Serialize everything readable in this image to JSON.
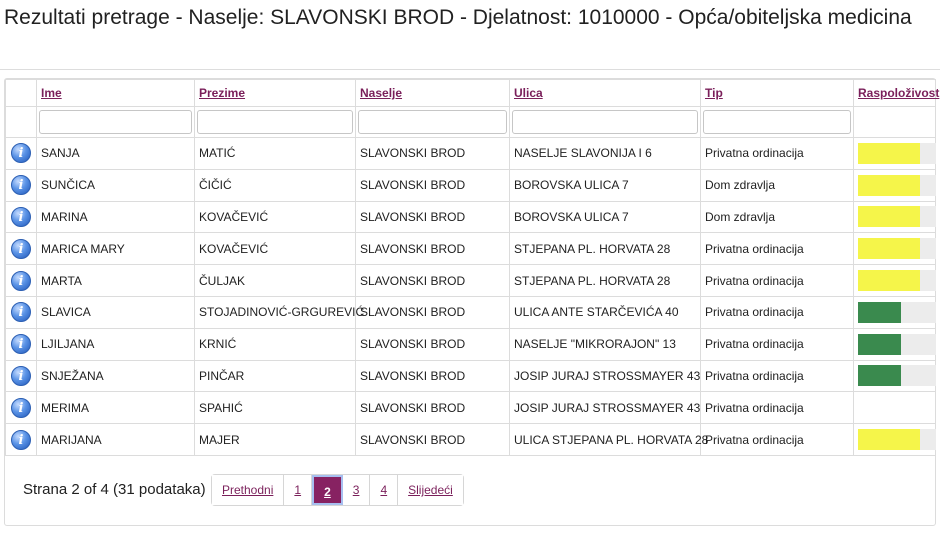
{
  "page": {
    "title": "Rezultati pretrage - Naselje: SLAVONSKI BROD - Djelatnost: 1010000 - Opća/obiteljska medicina"
  },
  "table": {
    "columns": [
      "Ime",
      "Prezime",
      "Naselje",
      "Ulica",
      "Tip",
      "Raspoloživost"
    ],
    "rows": [
      {
        "ime": "SANJA",
        "prezime": "MATIĆ",
        "naselje": "SLAVONSKI BROD",
        "ulica": "NASELJE SLAVONIJA I 6",
        "tip": "Privatna ordinacija",
        "availability": {
          "level": 0.8,
          "color": "#f5f54a"
        }
      },
      {
        "ime": "SUNČICA",
        "prezime": "ČIČIĆ",
        "naselje": "SLAVONSKI BROD",
        "ulica": "BOROVSKA ULICA 7",
        "tip": "Dom zdravlja",
        "availability": {
          "level": 0.8,
          "color": "#f5f54a"
        }
      },
      {
        "ime": "MARINA",
        "prezime": "KOVAČEVIĆ",
        "naselje": "SLAVONSKI BROD",
        "ulica": "BOROVSKA ULICA 7",
        "tip": "Dom zdravlja",
        "availability": {
          "level": 0.8,
          "color": "#f5f54a"
        }
      },
      {
        "ime": "MARICA MARY",
        "prezime": "KOVAČEVIĆ",
        "naselje": "SLAVONSKI BROD",
        "ulica": "STJEPANA PL. HORVATA 28",
        "tip": "Privatna ordinacija",
        "availability": {
          "level": 0.8,
          "color": "#f5f54a"
        }
      },
      {
        "ime": "MARTA",
        "prezime": "ČULJAK",
        "naselje": "SLAVONSKI BROD",
        "ulica": "STJEPANA PL. HORVATA 28",
        "tip": "Privatna ordinacija",
        "availability": {
          "level": 0.8,
          "color": "#f5f54a"
        }
      },
      {
        "ime": "SLAVICA",
        "prezime": "STOJADINOVIĆ-GRGUREVIĆ",
        "naselje": "SLAVONSKI BROD",
        "ulica": "ULICA ANTE STARČEVIĆA 40",
        "tip": "Privatna ordinacija",
        "availability": {
          "level": 0.55,
          "color": "#3a8a4e"
        }
      },
      {
        "ime": "LJILJANA",
        "prezime": "KRNIĆ",
        "naselje": "SLAVONSKI BROD",
        "ulica": "NASELJE \"MIKRORAJON\" 13",
        "tip": "Privatna ordinacija",
        "availability": {
          "level": 0.55,
          "color": "#3a8a4e"
        }
      },
      {
        "ime": "SNJEŽANA",
        "prezime": "PINČAR",
        "naselje": "SLAVONSKI BROD",
        "ulica": "JOSIP JURAJ STROSSMAYER 43",
        "tip": "Privatna ordinacija",
        "availability": {
          "level": 0.55,
          "color": "#3a8a4e"
        }
      },
      {
        "ime": "MERIMA",
        "prezime": "SPAHIĆ",
        "naselje": "SLAVONSKI BROD",
        "ulica": "JOSIP JURAJ STROSSMAYER 43",
        "tip": "Privatna ordinacija",
        "availability": null
      },
      {
        "ime": "MARIJANA",
        "prezime": "MAJER",
        "naselje": "SLAVONSKI BROD",
        "ulica": "ULICA STJEPANA PL. HORVATA 28",
        "tip": "Privatna ordinacija",
        "availability": {
          "level": 0.8,
          "color": "#f5f54a"
        }
      }
    ]
  },
  "pagination": {
    "summary": "Strana 2 of 4 (31 podataka)",
    "prev_label": "Prethodni",
    "next_label": "Slijedeći",
    "pages": [
      "1",
      "2",
      "3",
      "4"
    ],
    "current_page": "2"
  },
  "colors": {
    "link": "#7a1f5a",
    "active_page": "#872262",
    "avail_high": "#f5f54a",
    "avail_mid": "#3a8a4e"
  }
}
